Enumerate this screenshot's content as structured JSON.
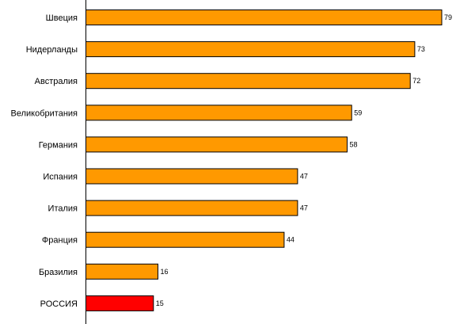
{
  "chart_data": {
    "type": "bar",
    "orientation": "horizontal",
    "title": "",
    "xlabel": "",
    "ylabel": "",
    "xlim": [
      0,
      80
    ],
    "grid": false,
    "legend": "none",
    "categories": [
      "Швеция",
      "Нидерланды",
      "Австралия",
      "Великобритания",
      "Германия",
      "Испания",
      "Италия",
      "Франция",
      "Бразилия",
      "РОССИЯ"
    ],
    "values": [
      79,
      73,
      72,
      59,
      58,
      47,
      47,
      44,
      16,
      15
    ],
    "colors": {
      "default": "#FF9900",
      "highlight": "#FF0000",
      "highlight_category": "РОССИЯ",
      "outline": "#000000"
    }
  }
}
